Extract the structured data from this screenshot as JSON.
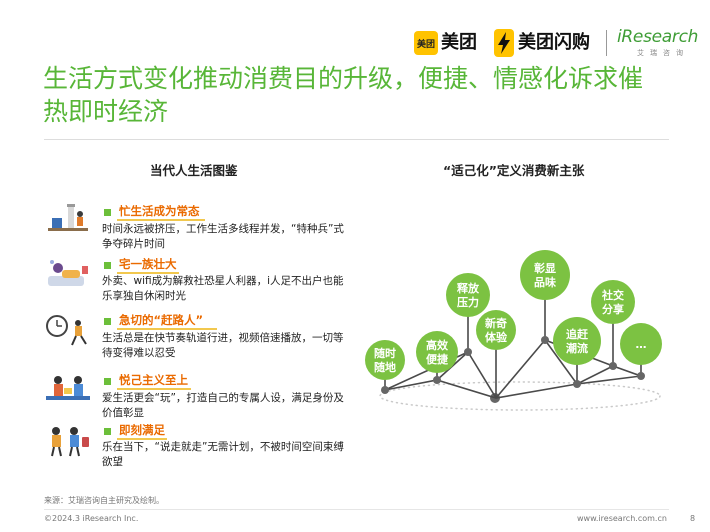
{
  "header": {
    "meituan_logo_box": "美团",
    "meituan": "美团",
    "meituan_shangou": "美团闪购",
    "iresearch": "iResearch",
    "iresearch_sub": "艾瑞咨询"
  },
  "title": "生活方式变化推动消费目的升级，便捷、情感化诉求催热即时经济",
  "left": {
    "heading": "当代人生活图鉴",
    "items": [
      {
        "title": "忙生活成为常态",
        "desc": "时间永远被挤压，工作生活多线程并发，“特种兵”式争夺碎片时间"
      },
      {
        "title": "宅一族壮大",
        "desc": "外卖、wifi成为解救社恐星人利器，i人足不出户也能乐享独自休闲时光"
      },
      {
        "title": "急切的“赶路人”",
        "desc": "生活总是在快节奏轨道行进，视频倍速播放，一切等待变得难以忍受"
      },
      {
        "title": "悦己主义至上",
        "desc": "爱生活更会“玩”，打造自己的专属人设，满足身份及价值彰显"
      },
      {
        "title": "即刻满足",
        "desc": "乐在当下，“说走就走”无需计划，不被时间空间束缚欲望"
      }
    ]
  },
  "right": {
    "heading": "“适己化”定义消费新主张",
    "bubbles": [
      {
        "label": "随时随地"
      },
      {
        "label": "高效便捷"
      },
      {
        "label": "释放压力"
      },
      {
        "label": "新奇体验"
      },
      {
        "label": "彰显品味"
      },
      {
        "label": "追赶潮流"
      },
      {
        "label": "社交分享"
      },
      {
        "label": "…"
      }
    ]
  },
  "footer": {
    "source": "来源：艾瑞咨询自主研究及绘制。",
    "copyright": "©2024.3 iResearch Inc.",
    "url": "www.iresearch.com.cn",
    "page": "8"
  },
  "colors": {
    "accent_green": "#58b638",
    "bubble_green": "#7cc242",
    "orange": "#ea6a00",
    "meituan_yellow": "#ffc300"
  }
}
